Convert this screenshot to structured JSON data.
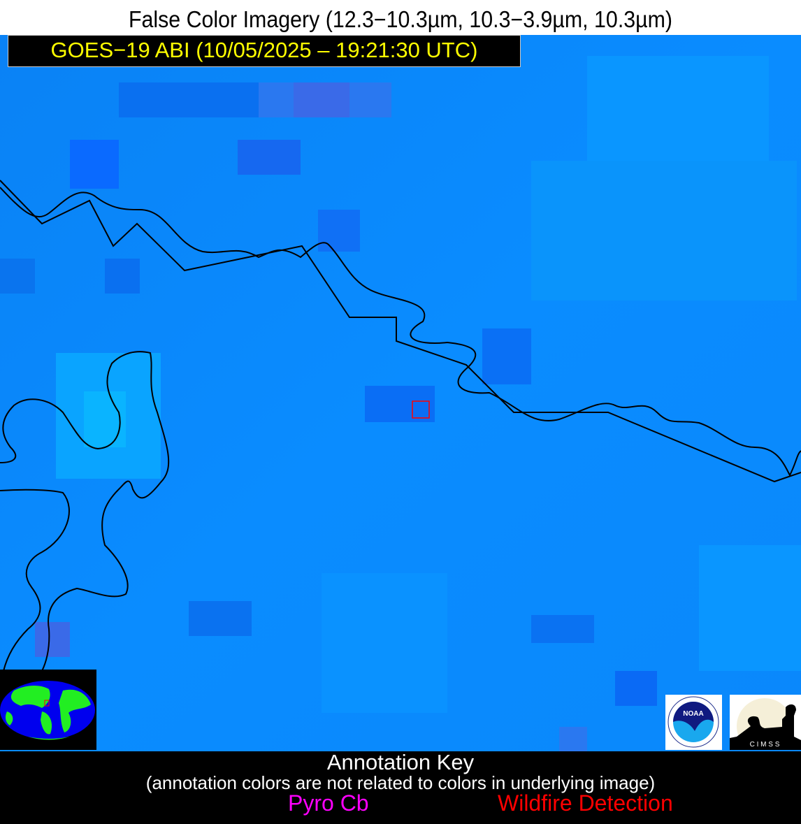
{
  "header": {
    "title": "False Color Imagery (12.3−10.3µm, 10.3−3.9µm, 10.3µm)",
    "subtitle": "GOES−19 ABI (10/05/2025 – 19:21:30 UTC)"
  },
  "colors": {
    "background_blue": "#0a8cff",
    "subtitle_text": "#ffff00",
    "boundary_lines": "#000000",
    "detection_box": "#ff0000",
    "pyro_cb": "#ff00ff",
    "wildfire": "#ff0000"
  },
  "map": {
    "detection_marker": "wildfire-detection-box",
    "locator_globe": "globe-icon",
    "logos": [
      {
        "name": "NOAA",
        "text": "NOAA"
      },
      {
        "name": "CIMSS",
        "text": "C I M S S"
      }
    ]
  },
  "annotation_key": {
    "title": "Annotation Key",
    "note": "(annotation colors are not related to colors in underlying image)",
    "items": [
      "Pyro Cb",
      "Wildfire Detection"
    ]
  }
}
